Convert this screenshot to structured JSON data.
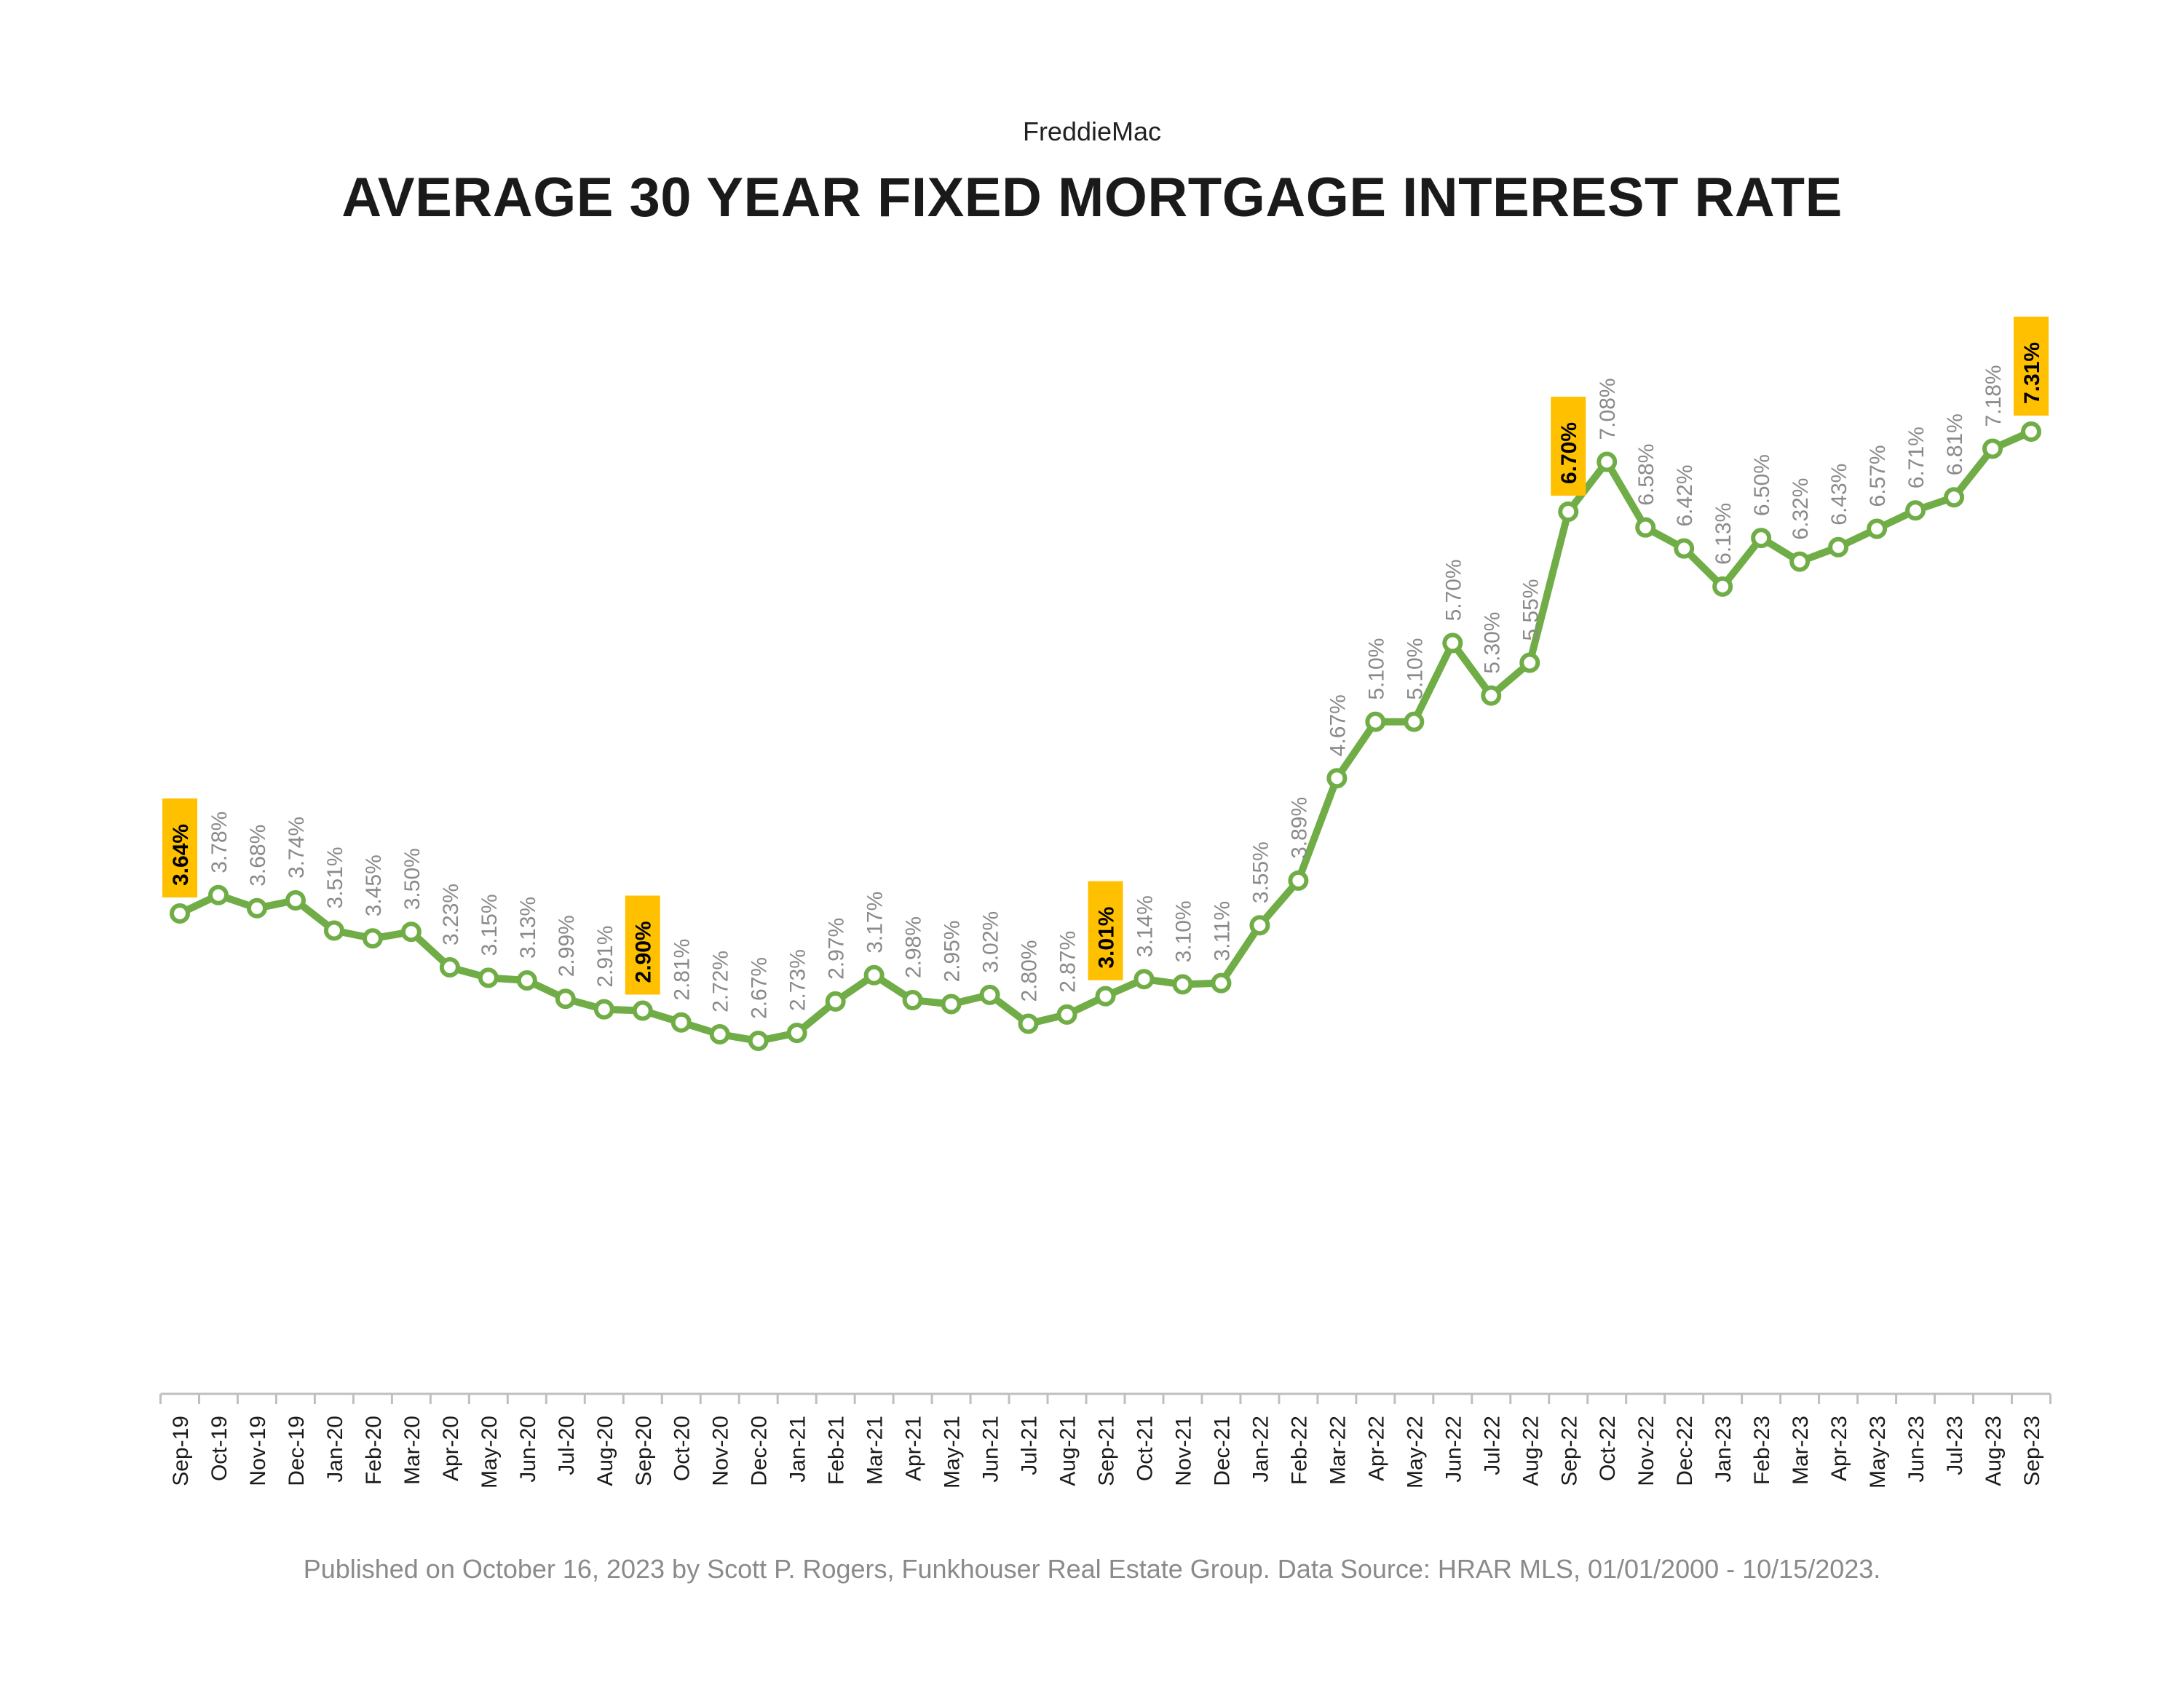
{
  "header": {
    "source": "FreddieMac",
    "title": "AVERAGE 30 YEAR FIXED MORTGAGE INTEREST RATE"
  },
  "footer": {
    "note": "Published on October 16, 2023 by Scott P. Rogers, Funkhouser Real Estate Group. Data Source: HRAR MLS, 01/01/2000 - 10/15/2023."
  },
  "colors": {
    "line": "#70ad47",
    "highlight": "#ffc000",
    "label": "#8a8a8a",
    "axis": "#bfbfbf"
  },
  "chart_data": {
    "type": "line",
    "title": "AVERAGE 30 YEAR FIXED MORTGAGE INTEREST RATE",
    "xlabel": "",
    "ylabel": "",
    "grid": false,
    "legend": "none",
    "ylim": [
      0,
      8
    ],
    "categories": [
      "Sep-19",
      "Oct-19",
      "Nov-19",
      "Dec-19",
      "Jan-20",
      "Feb-20",
      "Mar-20",
      "Apr-20",
      "May-20",
      "Jun-20",
      "Jul-20",
      "Aug-20",
      "Sep-20",
      "Oct-20",
      "Nov-20",
      "Dec-20",
      "Jan-21",
      "Feb-21",
      "Mar-21",
      "Apr-21",
      "May-21",
      "Jun-21",
      "Jul-21",
      "Aug-21",
      "Sep-21",
      "Oct-21",
      "Nov-21",
      "Dec-21",
      "Jan-22",
      "Feb-22",
      "Mar-22",
      "Apr-22",
      "May-22",
      "Jun-22",
      "Jul-22",
      "Aug-22",
      "Sep-22",
      "Oct-22",
      "Nov-22",
      "Dec-22",
      "Jan-23",
      "Feb-23",
      "Mar-23",
      "Apr-23",
      "May-23",
      "Jun-23",
      "Jul-23",
      "Aug-23",
      "Sep-23"
    ],
    "values": [
      3.64,
      3.78,
      3.68,
      3.74,
      3.51,
      3.45,
      3.5,
      3.23,
      3.15,
      3.13,
      2.99,
      2.91,
      2.9,
      2.81,
      2.72,
      2.67,
      2.73,
      2.97,
      3.17,
      2.98,
      2.95,
      3.02,
      2.8,
      2.87,
      3.01,
      3.14,
      3.1,
      3.11,
      3.55,
      3.89,
      4.67,
      5.1,
      5.1,
      5.7,
      5.3,
      5.55,
      6.7,
      7.08,
      6.58,
      6.42,
      6.13,
      6.5,
      6.32,
      6.43,
      6.57,
      6.71,
      6.81,
      7.18,
      7.31
    ],
    "data_labels": [
      "3.64%",
      "3.78%",
      "3.68%",
      "3.74%",
      "3.51%",
      "3.45%",
      "3.50%",
      "3.23%",
      "3.15%",
      "3.13%",
      "2.99%",
      "2.91%",
      "2.90%",
      "2.81%",
      "2.72%",
      "2.67%",
      "2.73%",
      "2.97%",
      "3.17%",
      "2.98%",
      "2.95%",
      "3.02%",
      "2.80%",
      "2.87%",
      "3.01%",
      "3.14%",
      "3.10%",
      "3.11%",
      "3.55%",
      "3.89%",
      "4.67%",
      "5.10%",
      "5.10%",
      "5.70%",
      "5.30%",
      "5.55%",
      "6.70%",
      "7.08%",
      "6.58%",
      "6.42%",
      "6.13%",
      "6.50%",
      "6.32%",
      "6.43%",
      "6.57%",
      "6.71%",
      "6.81%",
      "7.18%",
      "7.31%"
    ],
    "highlighted_categories": [
      "Sep-19",
      "Sep-20",
      "Sep-21",
      "Sep-22",
      "Sep-23"
    ]
  }
}
